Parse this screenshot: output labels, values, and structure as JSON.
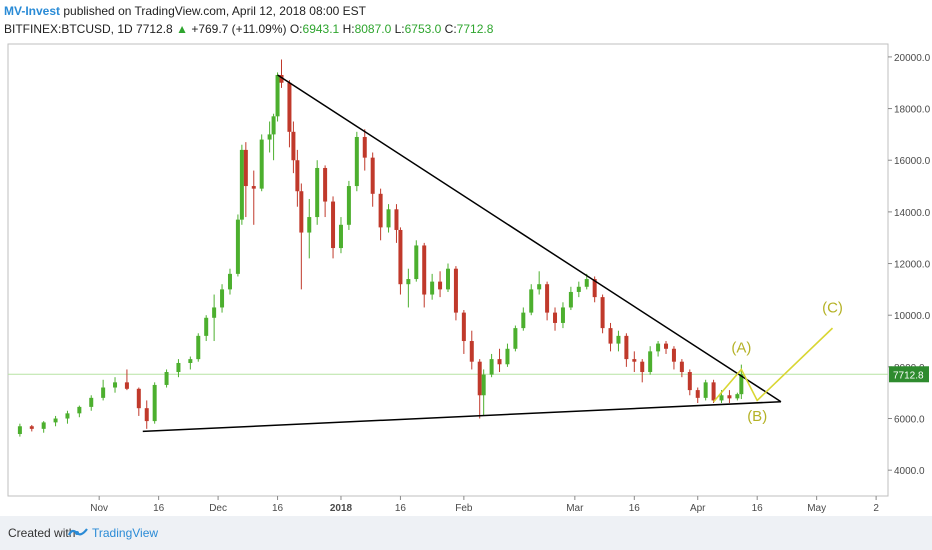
{
  "header": {
    "author": "MV-Invest",
    "published_text": "published on TradingView.com, April 12, 2018 08:00 EST",
    "symbol": "BITFINEX:BTCUSD, 1D",
    "last": "7712.8",
    "change_arrow": "▲",
    "change": "+769.7 (+11.09%)",
    "open_label": "O:",
    "open": "6943.1",
    "high_label": "H:",
    "high": "8087.0",
    "low_label": "L:",
    "low": "6753.0",
    "close_label": "C:",
    "close": "7712.8"
  },
  "footer": {
    "created_with": "Created with",
    "brand": "TradingView"
  },
  "colors": {
    "up": "#4caf2e",
    "down": "#c0392b",
    "trendline": "#000000",
    "wave": "#d9d633",
    "wave_text": "#b5b226",
    "price_line": "#b7e4a3",
    "price_tag": "#2e8b2e",
    "axis_text": "#4a4a4a"
  },
  "chart_data": {
    "type": "candlestick",
    "symbol": "BITFINEX:BTCUSD",
    "interval": "1D",
    "ylim": [
      3000,
      20500
    ],
    "yticks": [
      4000,
      6000,
      8000,
      10000,
      12000,
      14000,
      16000,
      18000,
      20000
    ],
    "ytick_labels": [
      "4000.0",
      "6000.0",
      "8000.0",
      "10000.0",
      "12000.0",
      "14000.0",
      "16000.0",
      "18000.0",
      "20000.0"
    ],
    "xticks": [
      {
        "date": "2017-11-01",
        "label": "Nov"
      },
      {
        "date": "2017-11-16",
        "label": "16"
      },
      {
        "date": "2017-12-01",
        "label": "Dec"
      },
      {
        "date": "2017-12-16",
        "label": "16"
      },
      {
        "date": "2018-01-01",
        "label": "2018"
      },
      {
        "date": "2018-01-16",
        "label": "16"
      },
      {
        "date": "2018-02-01",
        "label": "Feb"
      },
      {
        "date": "2018-03-01",
        "label": "Mar"
      },
      {
        "date": "2018-03-16",
        "label": "16"
      },
      {
        "date": "2018-04-01",
        "label": "Apr"
      },
      {
        "date": "2018-04-16",
        "label": "16"
      },
      {
        "date": "2018-05-01",
        "label": "May"
      },
      {
        "date": "2018-05-16",
        "label": "2"
      }
    ],
    "candles": [
      [
        "2017-10-12",
        5400,
        5800,
        5300,
        5700
      ],
      [
        "2017-10-15",
        5700,
        5750,
        5500,
        5600
      ],
      [
        "2017-10-18",
        5600,
        5900,
        5450,
        5850
      ],
      [
        "2017-10-21",
        5850,
        6100,
        5700,
        6000
      ],
      [
        "2017-10-24",
        6000,
        6300,
        5800,
        6200
      ],
      [
        "2017-10-27",
        6200,
        6500,
        6050,
        6450
      ],
      [
        "2017-10-30",
        6450,
        6900,
        6300,
        6800
      ],
      [
        "2017-11-02",
        6800,
        7500,
        6700,
        7200
      ],
      [
        "2017-11-05",
        7200,
        7600,
        7000,
        7400
      ],
      [
        "2017-11-08",
        7400,
        7900,
        7100,
        7150
      ],
      [
        "2017-11-11",
        7150,
        7200,
        6100,
        6400
      ],
      [
        "2017-11-13",
        6400,
        6700,
        5600,
        5900
      ],
      [
        "2017-11-15",
        5900,
        7400,
        5800,
        7300
      ],
      [
        "2017-11-18",
        7300,
        7900,
        7200,
        7800
      ],
      [
        "2017-11-21",
        7800,
        8300,
        7600,
        8150
      ],
      [
        "2017-11-24",
        8150,
        8400,
        7900,
        8300
      ],
      [
        "2017-11-26",
        8300,
        9300,
        8200,
        9200
      ],
      [
        "2017-11-28",
        9200,
        10000,
        9000,
        9900
      ],
      [
        "2017-11-30",
        9900,
        10800,
        9000,
        10300
      ],
      [
        "2017-12-02",
        10300,
        11200,
        10100,
        11000
      ],
      [
        "2017-12-04",
        11000,
        11800,
        10800,
        11600
      ],
      [
        "2017-12-06",
        11600,
        13900,
        11500,
        13700
      ],
      [
        "2017-12-07",
        13700,
        16600,
        13500,
        16400
      ],
      [
        "2017-12-08",
        16400,
        16700,
        13800,
        15000
      ],
      [
        "2017-12-10",
        15000,
        15600,
        13500,
        14900
      ],
      [
        "2017-12-12",
        14900,
        17000,
        14800,
        16800
      ],
      [
        "2017-12-14",
        16800,
        17500,
        16300,
        17000
      ],
      [
        "2017-12-15",
        17000,
        17800,
        16000,
        17700
      ],
      [
        "2017-12-16",
        17700,
        19400,
        17500,
        19300
      ],
      [
        "2017-12-17",
        19300,
        19900,
        18800,
        19000
      ],
      [
        "2017-12-19",
        19000,
        19100,
        16500,
        17100
      ],
      [
        "2017-12-20",
        17100,
        17500,
        15500,
        16000
      ],
      [
        "2017-12-21",
        16000,
        16400,
        14200,
        14800
      ],
      [
        "2017-12-22",
        14800,
        15100,
        11000,
        13200
      ],
      [
        "2017-12-24",
        13200,
        14500,
        12200,
        13800
      ],
      [
        "2017-12-26",
        13800,
        16000,
        13500,
        15700
      ],
      [
        "2017-12-28",
        15700,
        15800,
        13800,
        14400
      ],
      [
        "2017-12-30",
        14400,
        14600,
        12200,
        12600
      ],
      [
        "2018-01-01",
        12600,
        13800,
        12400,
        13500
      ],
      [
        "2018-01-03",
        13500,
        15200,
        13300,
        15000
      ],
      [
        "2018-01-05",
        15000,
        17100,
        14800,
        16900
      ],
      [
        "2018-01-07",
        16900,
        17200,
        15600,
        16100
      ],
      [
        "2018-01-09",
        16100,
        16300,
        14200,
        14700
      ],
      [
        "2018-01-11",
        14700,
        14900,
        12900,
        13400
      ],
      [
        "2018-01-13",
        13400,
        14300,
        13200,
        14100
      ],
      [
        "2018-01-15",
        14100,
        14300,
        12800,
        13300
      ],
      [
        "2018-01-16",
        13300,
        13400,
        10800,
        11200
      ],
      [
        "2018-01-18",
        11200,
        11800,
        10300,
        11400
      ],
      [
        "2018-01-20",
        11400,
        12900,
        11300,
        12700
      ],
      [
        "2018-01-22",
        12700,
        12800,
        10300,
        10800
      ],
      [
        "2018-01-24",
        10800,
        11600,
        10600,
        11300
      ],
      [
        "2018-01-26",
        11300,
        11700,
        10700,
        11000
      ],
      [
        "2018-01-28",
        11000,
        12000,
        10900,
        11800
      ],
      [
        "2018-01-30",
        11800,
        11900,
        9800,
        10100
      ],
      [
        "2018-02-01",
        10100,
        10200,
        8500,
        9000
      ],
      [
        "2018-02-03",
        9000,
        9400,
        7900,
        8200
      ],
      [
        "2018-02-05",
        8200,
        8300,
        6000,
        6900
      ],
      [
        "2018-02-06",
        6900,
        7900,
        6100,
        7700
      ],
      [
        "2018-02-08",
        7700,
        8500,
        7600,
        8300
      ],
      [
        "2018-02-10",
        8300,
        8700,
        7800,
        8100
      ],
      [
        "2018-02-12",
        8100,
        8900,
        8000,
        8700
      ],
      [
        "2018-02-14",
        8700,
        9600,
        8600,
        9500
      ],
      [
        "2018-02-16",
        9500,
        10300,
        9400,
        10100
      ],
      [
        "2018-02-18",
        10100,
        11200,
        10000,
        11000
      ],
      [
        "2018-02-20",
        11000,
        11700,
        10800,
        11200
      ],
      [
        "2018-02-22",
        11200,
        11300,
        9800,
        10100
      ],
      [
        "2018-02-24",
        10100,
        10300,
        9400,
        9700
      ],
      [
        "2018-02-26",
        9700,
        10500,
        9500,
        10300
      ],
      [
        "2018-02-28",
        10300,
        11100,
        10200,
        10900
      ],
      [
        "2018-03-02",
        10900,
        11300,
        10700,
        11100
      ],
      [
        "2018-03-04",
        11100,
        11600,
        11000,
        11400
      ],
      [
        "2018-03-06",
        11400,
        11500,
        10500,
        10700
      ],
      [
        "2018-03-08",
        10700,
        10800,
        9300,
        9500
      ],
      [
        "2018-03-10",
        9500,
        9700,
        8600,
        8900
      ],
      [
        "2018-03-12",
        8900,
        9400,
        8600,
        9200
      ],
      [
        "2018-03-14",
        9200,
        9300,
        8000,
        8300
      ],
      [
        "2018-03-16",
        8300,
        8600,
        7800,
        8200
      ],
      [
        "2018-03-18",
        8200,
        8300,
        7400,
        7800
      ],
      [
        "2018-03-20",
        7800,
        8800,
        7700,
        8600
      ],
      [
        "2018-03-22",
        8600,
        9000,
        8400,
        8900
      ],
      [
        "2018-03-24",
        8900,
        9000,
        8500,
        8700
      ],
      [
        "2018-03-26",
        8700,
        8800,
        7900,
        8200
      ],
      [
        "2018-03-28",
        8200,
        8300,
        7600,
        7800
      ],
      [
        "2018-03-30",
        7800,
        7900,
        6900,
        7100
      ],
      [
        "2018-04-01",
        7100,
        7200,
        6600,
        6800
      ],
      [
        "2018-04-03",
        6800,
        7500,
        6700,
        7400
      ],
      [
        "2018-04-05",
        7400,
        7500,
        6600,
        6700
      ],
      [
        "2018-04-07",
        6700,
        7100,
        6600,
        6900
      ],
      [
        "2018-04-09",
        6900,
        7100,
        6600,
        6780
      ],
      [
        "2018-04-11",
        6780,
        7000,
        6700,
        6943
      ],
      [
        "2018-04-12",
        6943,
        8087,
        6753,
        7712.8
      ]
    ],
    "trendlines": [
      {
        "name": "upper",
        "points": [
          [
            "2017-12-16",
            19300
          ],
          [
            "2018-04-22",
            6650
          ]
        ]
      },
      {
        "name": "lower",
        "points": [
          [
            "2017-11-12",
            5500
          ],
          [
            "2018-04-22",
            6650
          ]
        ]
      }
    ],
    "wave_path": [
      [
        "2018-04-05",
        6650
      ],
      [
        "2018-04-12",
        7900
      ],
      [
        "2018-04-16",
        6700
      ],
      [
        "2018-05-05",
        9500
      ]
    ],
    "wave_labels": [
      {
        "text": "(A)",
        "date": "2018-04-12",
        "price": 8550
      },
      {
        "text": "(B)",
        "date": "2018-04-16",
        "price": 5900
      },
      {
        "text": "(C)",
        "date": "2018-05-05",
        "price": 10100
      }
    ],
    "last_price_label": "7712.8",
    "last_price": 7712.8
  }
}
